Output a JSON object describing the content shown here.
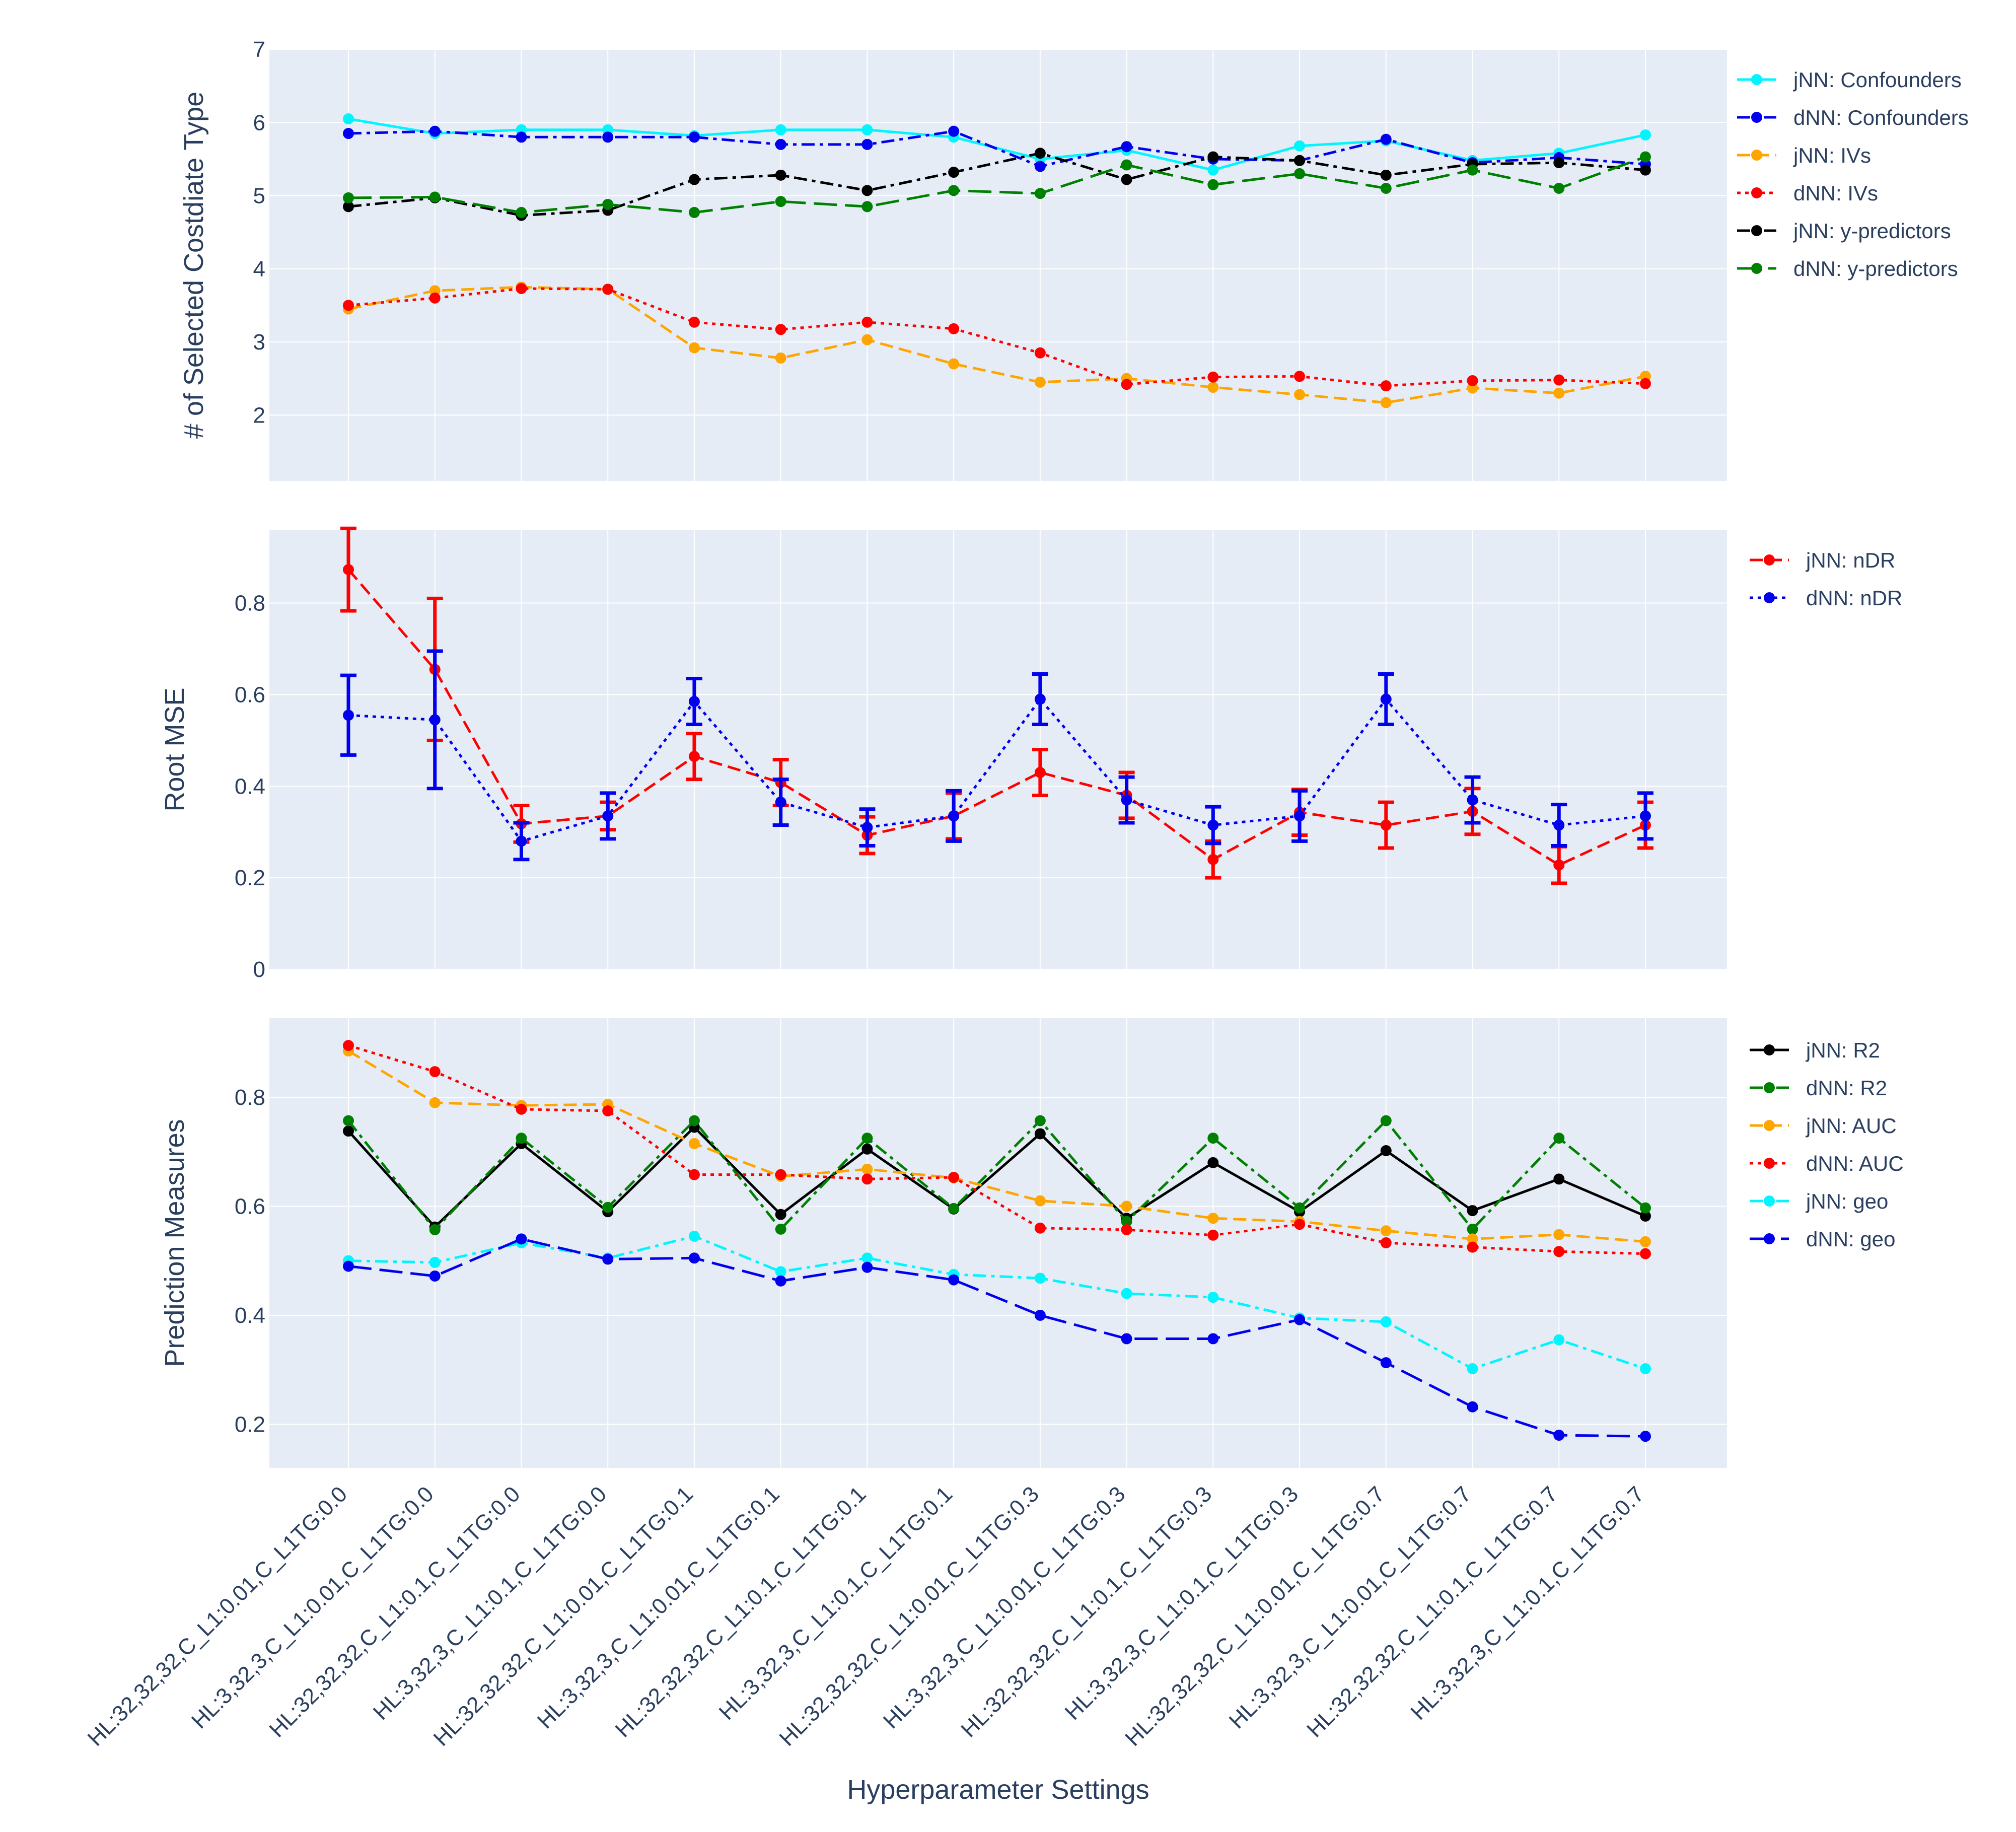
{
  "chart_data": [
    {
      "type": "line",
      "ylabel": "# of Selected Costdiate Type",
      "ylim": [
        1.1,
        7
      ],
      "yticks": [
        2,
        3,
        4,
        5,
        6,
        7
      ],
      "series": [
        {
          "name": "jNN: Confounders",
          "color": "#00f5ff",
          "dash": "solid",
          "values": [
            6.05,
            5.85,
            5.9,
            5.9,
            5.82,
            5.9,
            5.9,
            5.8,
            5.5,
            5.62,
            5.35,
            5.68,
            5.75,
            5.48,
            5.58,
            5.83
          ]
        },
        {
          "name": "dNN: Confounders",
          "color": "#0000ee",
          "dash": "dashdot",
          "values": [
            5.85,
            5.88,
            5.8,
            5.8,
            5.8,
            5.7,
            5.7,
            5.88,
            5.4,
            5.67,
            5.5,
            5.48,
            5.77,
            5.45,
            5.52,
            5.43
          ]
        },
        {
          "name": "jNN: IVs",
          "color": "#ffa500",
          "dash": "dash",
          "values": [
            3.45,
            3.7,
            3.75,
            3.72,
            2.92,
            2.78,
            3.03,
            2.7,
            2.45,
            2.5,
            2.38,
            2.28,
            2.17,
            2.37,
            2.3,
            2.53
          ]
        },
        {
          "name": "dNN: IVs",
          "color": "#ff0000",
          "dash": "dot",
          "values": [
            3.5,
            3.6,
            3.73,
            3.72,
            3.27,
            3.17,
            3.27,
            3.18,
            2.85,
            2.42,
            2.52,
            2.53,
            2.4,
            2.47,
            2.48,
            2.43
          ]
        },
        {
          "name": "jNN: y-predictors",
          "color": "#000000",
          "dash": "dashdot",
          "values": [
            4.85,
            4.97,
            4.73,
            4.8,
            5.22,
            5.28,
            5.07,
            5.32,
            5.58,
            5.22,
            5.53,
            5.48,
            5.28,
            5.43,
            5.45,
            5.35
          ]
        },
        {
          "name": "dNN: y-predictors",
          "color": "#008000",
          "dash": "longdash",
          "values": [
            4.97,
            4.98,
            4.77,
            4.88,
            4.77,
            4.92,
            4.85,
            5.07,
            5.03,
            5.42,
            5.15,
            5.3,
            5.1,
            5.35,
            5.1,
            5.53
          ]
        }
      ]
    },
    {
      "type": "line",
      "ylabel": "Root MSE",
      "ylim": [
        0,
        0.96
      ],
      "yticks": [
        0,
        0.2,
        0.4,
        0.6,
        0.8
      ],
      "series": [
        {
          "name": "jNN: nDR",
          "color": "#ff0000",
          "dash": "dash",
          "values": [
            0.873,
            0.655,
            0.318,
            0.335,
            0.465,
            0.408,
            0.293,
            0.335,
            0.43,
            0.38,
            0.24,
            0.343,
            0.315,
            0.345,
            0.228,
            0.315
          ],
          "errors": [
            0.09,
            0.155,
            0.04,
            0.03,
            0.05,
            0.05,
            0.04,
            0.05,
            0.05,
            0.05,
            0.04,
            0.05,
            0.05,
            0.05,
            0.04,
            0.05
          ]
        },
        {
          "name": "dNN: nDR",
          "color": "#0000ee",
          "dash": "dot",
          "values": [
            0.555,
            0.545,
            0.28,
            0.335,
            0.585,
            0.365,
            0.31,
            0.335,
            0.59,
            0.37,
            0.315,
            0.335,
            0.59,
            0.37,
            0.315,
            0.335
          ],
          "errors": [
            0.087,
            0.15,
            0.04,
            0.05,
            0.05,
            0.05,
            0.04,
            0.055,
            0.055,
            0.05,
            0.04,
            0.055,
            0.055,
            0.05,
            0.045,
            0.05
          ]
        }
      ]
    },
    {
      "type": "line",
      "ylabel": "Prediction Measures",
      "xlabel": "Hyperparameter Settings",
      "ylim": [
        0.12,
        0.945
      ],
      "yticks": [
        0.2,
        0.4,
        0.6,
        0.8
      ],
      "series": [
        {
          "name": "jNN: R2",
          "color": "#000000",
          "dash": "solid",
          "values": [
            0.738,
            0.562,
            0.715,
            0.59,
            0.745,
            0.585,
            0.705,
            0.595,
            0.733,
            0.578,
            0.68,
            0.59,
            0.702,
            0.592,
            0.65,
            0.582
          ]
        },
        {
          "name": "dNN: R2",
          "color": "#008000",
          "dash": "dashdot",
          "values": [
            0.757,
            0.557,
            0.725,
            0.598,
            0.757,
            0.558,
            0.725,
            0.596,
            0.757,
            0.572,
            0.725,
            0.597,
            0.757,
            0.558,
            0.725,
            0.597
          ]
        },
        {
          "name": "jNN: AUC",
          "color": "#ffa500",
          "dash": "dash",
          "values": [
            0.885,
            0.79,
            0.785,
            0.787,
            0.715,
            0.655,
            0.668,
            0.652,
            0.61,
            0.6,
            0.578,
            0.572,
            0.555,
            0.54,
            0.548,
            0.535
          ]
        },
        {
          "name": "dNN: AUC",
          "color": "#ff0000",
          "dash": "dot",
          "values": [
            0.895,
            0.847,
            0.778,
            0.775,
            0.658,
            0.658,
            0.65,
            0.653,
            0.56,
            0.557,
            0.547,
            0.567,
            0.533,
            0.525,
            0.517,
            0.513
          ]
        },
        {
          "name": "jNN: geo",
          "color": "#00f5ff",
          "dash": "dashdot",
          "values": [
            0.5,
            0.497,
            0.533,
            0.505,
            0.545,
            0.48,
            0.505,
            0.475,
            0.468,
            0.44,
            0.433,
            0.395,
            0.388,
            0.302,
            0.355,
            0.302
          ]
        },
        {
          "name": "dNN: geo",
          "color": "#0000ee",
          "dash": "longdash",
          "values": [
            0.49,
            0.472,
            0.54,
            0.503,
            0.505,
            0.463,
            0.488,
            0.465,
            0.4,
            0.357,
            0.357,
            0.392,
            0.313,
            0.232,
            0.18,
            0.178
          ]
        }
      ]
    }
  ],
  "x_categories": [
    "HL:32,32,32,C_L1:0.01,C_L1TG:0.0",
    "HL:3,32,3,C_L1:0.01,C_L1TG:0.0",
    "HL:32,32,32,C_L1:0.1,C_L1TG:0.0",
    "HL:3,32,3,C_L1:0.1,C_L1TG:0.0",
    "HL:32,32,32,C_L1:0.01,C_L1TG:0.1",
    "HL:3,32,3,C_L1:0.01,C_L1TG:0.1",
    "HL:32,32,32,C_L1:0.1,C_L1TG:0.1",
    "HL:3,32,3,C_L1:0.1,C_L1TG:0.1",
    "HL:32,32,32,C_L1:0.01,C_L1TG:0.3",
    "HL:3,32,3,C_L1:0.01,C_L1TG:0.3",
    "HL:32,32,32,C_L1:0.1,C_L1TG:0.3",
    "HL:3,32,3,C_L1:0.1,C_L1TG:0.3",
    "HL:32,32,32,C_L1:0.01,C_L1TG:0.7",
    "HL:3,32,3,C_L1:0.01,C_L1TG:0.7",
    "HL:32,32,32,C_L1:0.1,C_L1TG:0.7",
    "HL:3,32,3,C_L1:0.1,C_L1TG:0.7"
  ],
  "colors": {
    "plot_bg": "#e5ecf6",
    "grid": "#ffffff",
    "text": "#2a3f5f"
  }
}
